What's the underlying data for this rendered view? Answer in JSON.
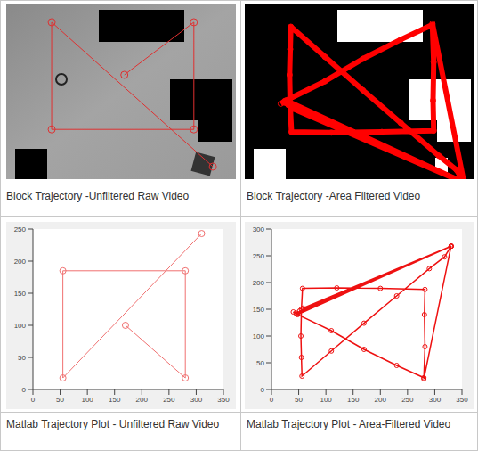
{
  "table": {
    "rows": [
      [
        "Block Trajectory -Unfiltered Raw Video",
        "Block Trajectory -Area Filtered Video"
      ],
      [
        "Matlab Trajectory Plot - Unfiltered Raw Video",
        "Matlab Trajectory Plot - Area-Filtered Video"
      ]
    ]
  },
  "chart_data": [
    {
      "type": "scatter",
      "x": [
        170,
        280,
        280,
        55,
        55,
        310
      ],
      "values": [
        100,
        18,
        185,
        185,
        18,
        243
      ],
      "color": "#f07070",
      "marker": "circle",
      "line_style": "solid",
      "xlim": [
        0,
        350
      ],
      "xticks": [
        0,
        50,
        100,
        150,
        200,
        250,
        300,
        350
      ],
      "ylim": [
        0,
        250
      ],
      "yticks": [
        0,
        50,
        100,
        150,
        200,
        250
      ]
    },
    {
      "type": "scatter",
      "x": [
        40,
        48,
        330,
        45,
        330,
        52,
        330,
        58,
        330,
        46,
        110,
        170,
        230,
        280,
        282,
        281,
        282,
        200,
        120,
        57,
        55,
        54,
        55,
        56,
        110,
        170,
        230,
        290,
        318,
        330,
        280
      ],
      "values": [
        145,
        140,
        268,
        143,
        268,
        147,
        268,
        152,
        268,
        141,
        110,
        75,
        45,
        22,
        80,
        140,
        187,
        189,
        190,
        189,
        150,
        100,
        60,
        25,
        72,
        124,
        175,
        226,
        248,
        268,
        20
      ],
      "color": "#ee1111",
      "marker": "circle",
      "line_style": "solid",
      "xlim": [
        0,
        350
      ],
      "xticks": [
        0,
        50,
        100,
        150,
        200,
        250,
        300,
        350
      ],
      "ylim": [
        0,
        300
      ],
      "yticks": [
        0,
        50,
        100,
        150,
        200,
        250,
        300
      ]
    }
  ]
}
